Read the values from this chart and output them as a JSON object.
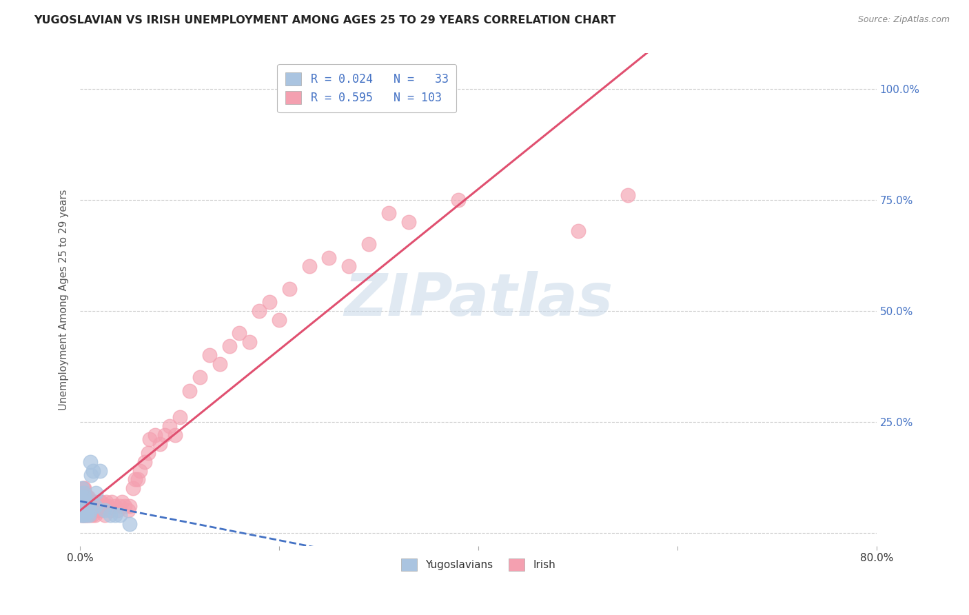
{
  "title": "YUGOSLAVIAN VS IRISH UNEMPLOYMENT AMONG AGES 25 TO 29 YEARS CORRELATION CHART",
  "source": "Source: ZipAtlas.com",
  "ylabel": "Unemployment Among Ages 25 to 29 years",
  "yticks": [
    0.0,
    0.25,
    0.5,
    0.75,
    1.0
  ],
  "ytick_labels": [
    "",
    "25.0%",
    "50.0%",
    "75.0%",
    "100.0%"
  ],
  "watermark_text": "ZIPatlas",
  "bg_color": "#ffffff",
  "grid_color": "#cccccc",
  "title_color": "#222222",
  "axis_label_color": "#555555",
  "right_tick_color": "#4472c4",
  "xlim": [
    0.0,
    0.8
  ],
  "ylim": [
    -0.03,
    1.08
  ],
  "yug_scatter_color": "#aac4e0",
  "yug_line_color": "#4472c4",
  "irish_scatter_color": "#f4a0b0",
  "irish_line_color": "#e05070",
  "yug_R": 0.024,
  "yug_N": 33,
  "irish_R": 0.595,
  "irish_N": 103,
  "yug_x": [
    0.001,
    0.001,
    0.001,
    0.002,
    0.002,
    0.002,
    0.002,
    0.003,
    0.003,
    0.003,
    0.003,
    0.004,
    0.004,
    0.004,
    0.005,
    0.005,
    0.006,
    0.006,
    0.007,
    0.008,
    0.009,
    0.01,
    0.01,
    0.011,
    0.013,
    0.015,
    0.016,
    0.02,
    0.025,
    0.03,
    0.035,
    0.04,
    0.05
  ],
  "yug_y": [
    0.04,
    0.05,
    0.06,
    0.04,
    0.06,
    0.08,
    0.1,
    0.04,
    0.05,
    0.07,
    0.09,
    0.04,
    0.06,
    0.08,
    0.05,
    0.07,
    0.04,
    0.06,
    0.05,
    0.06,
    0.04,
    0.16,
    0.05,
    0.13,
    0.14,
    0.06,
    0.09,
    0.14,
    0.05,
    0.04,
    0.04,
    0.04,
    0.02
  ],
  "irish_x": [
    0.001,
    0.001,
    0.001,
    0.001,
    0.002,
    0.002,
    0.002,
    0.002,
    0.002,
    0.003,
    0.003,
    0.003,
    0.003,
    0.003,
    0.003,
    0.004,
    0.004,
    0.004,
    0.004,
    0.004,
    0.005,
    0.005,
    0.005,
    0.005,
    0.006,
    0.006,
    0.006,
    0.007,
    0.007,
    0.007,
    0.008,
    0.008,
    0.008,
    0.009,
    0.009,
    0.01,
    0.01,
    0.01,
    0.011,
    0.011,
    0.012,
    0.012,
    0.013,
    0.013,
    0.014,
    0.015,
    0.015,
    0.016,
    0.016,
    0.017,
    0.018,
    0.019,
    0.02,
    0.02,
    0.021,
    0.022,
    0.023,
    0.025,
    0.025,
    0.026,
    0.028,
    0.03,
    0.032,
    0.035,
    0.038,
    0.04,
    0.042,
    0.045,
    0.048,
    0.05,
    0.053,
    0.055,
    0.058,
    0.06,
    0.065,
    0.068,
    0.07,
    0.075,
    0.08,
    0.085,
    0.09,
    0.095,
    0.1,
    0.11,
    0.12,
    0.13,
    0.14,
    0.15,
    0.16,
    0.17,
    0.18,
    0.19,
    0.2,
    0.21,
    0.23,
    0.25,
    0.27,
    0.29,
    0.31,
    0.33,
    0.38,
    0.5,
    0.55
  ],
  "irish_y": [
    0.04,
    0.05,
    0.06,
    0.08,
    0.04,
    0.05,
    0.06,
    0.07,
    0.09,
    0.04,
    0.05,
    0.06,
    0.07,
    0.08,
    0.1,
    0.04,
    0.05,
    0.07,
    0.08,
    0.1,
    0.04,
    0.05,
    0.07,
    0.09,
    0.04,
    0.05,
    0.07,
    0.04,
    0.06,
    0.08,
    0.04,
    0.06,
    0.08,
    0.05,
    0.07,
    0.04,
    0.05,
    0.07,
    0.05,
    0.07,
    0.04,
    0.06,
    0.05,
    0.07,
    0.05,
    0.04,
    0.06,
    0.05,
    0.07,
    0.06,
    0.05,
    0.06,
    0.05,
    0.07,
    0.07,
    0.05,
    0.06,
    0.04,
    0.06,
    0.07,
    0.06,
    0.05,
    0.07,
    0.06,
    0.05,
    0.06,
    0.07,
    0.06,
    0.05,
    0.06,
    0.1,
    0.12,
    0.12,
    0.14,
    0.16,
    0.18,
    0.21,
    0.22,
    0.2,
    0.22,
    0.24,
    0.22,
    0.26,
    0.32,
    0.35,
    0.4,
    0.38,
    0.42,
    0.45,
    0.43,
    0.5,
    0.52,
    0.48,
    0.55,
    0.6,
    0.62,
    0.6,
    0.65,
    0.72,
    0.7,
    0.75,
    0.68,
    0.76
  ]
}
